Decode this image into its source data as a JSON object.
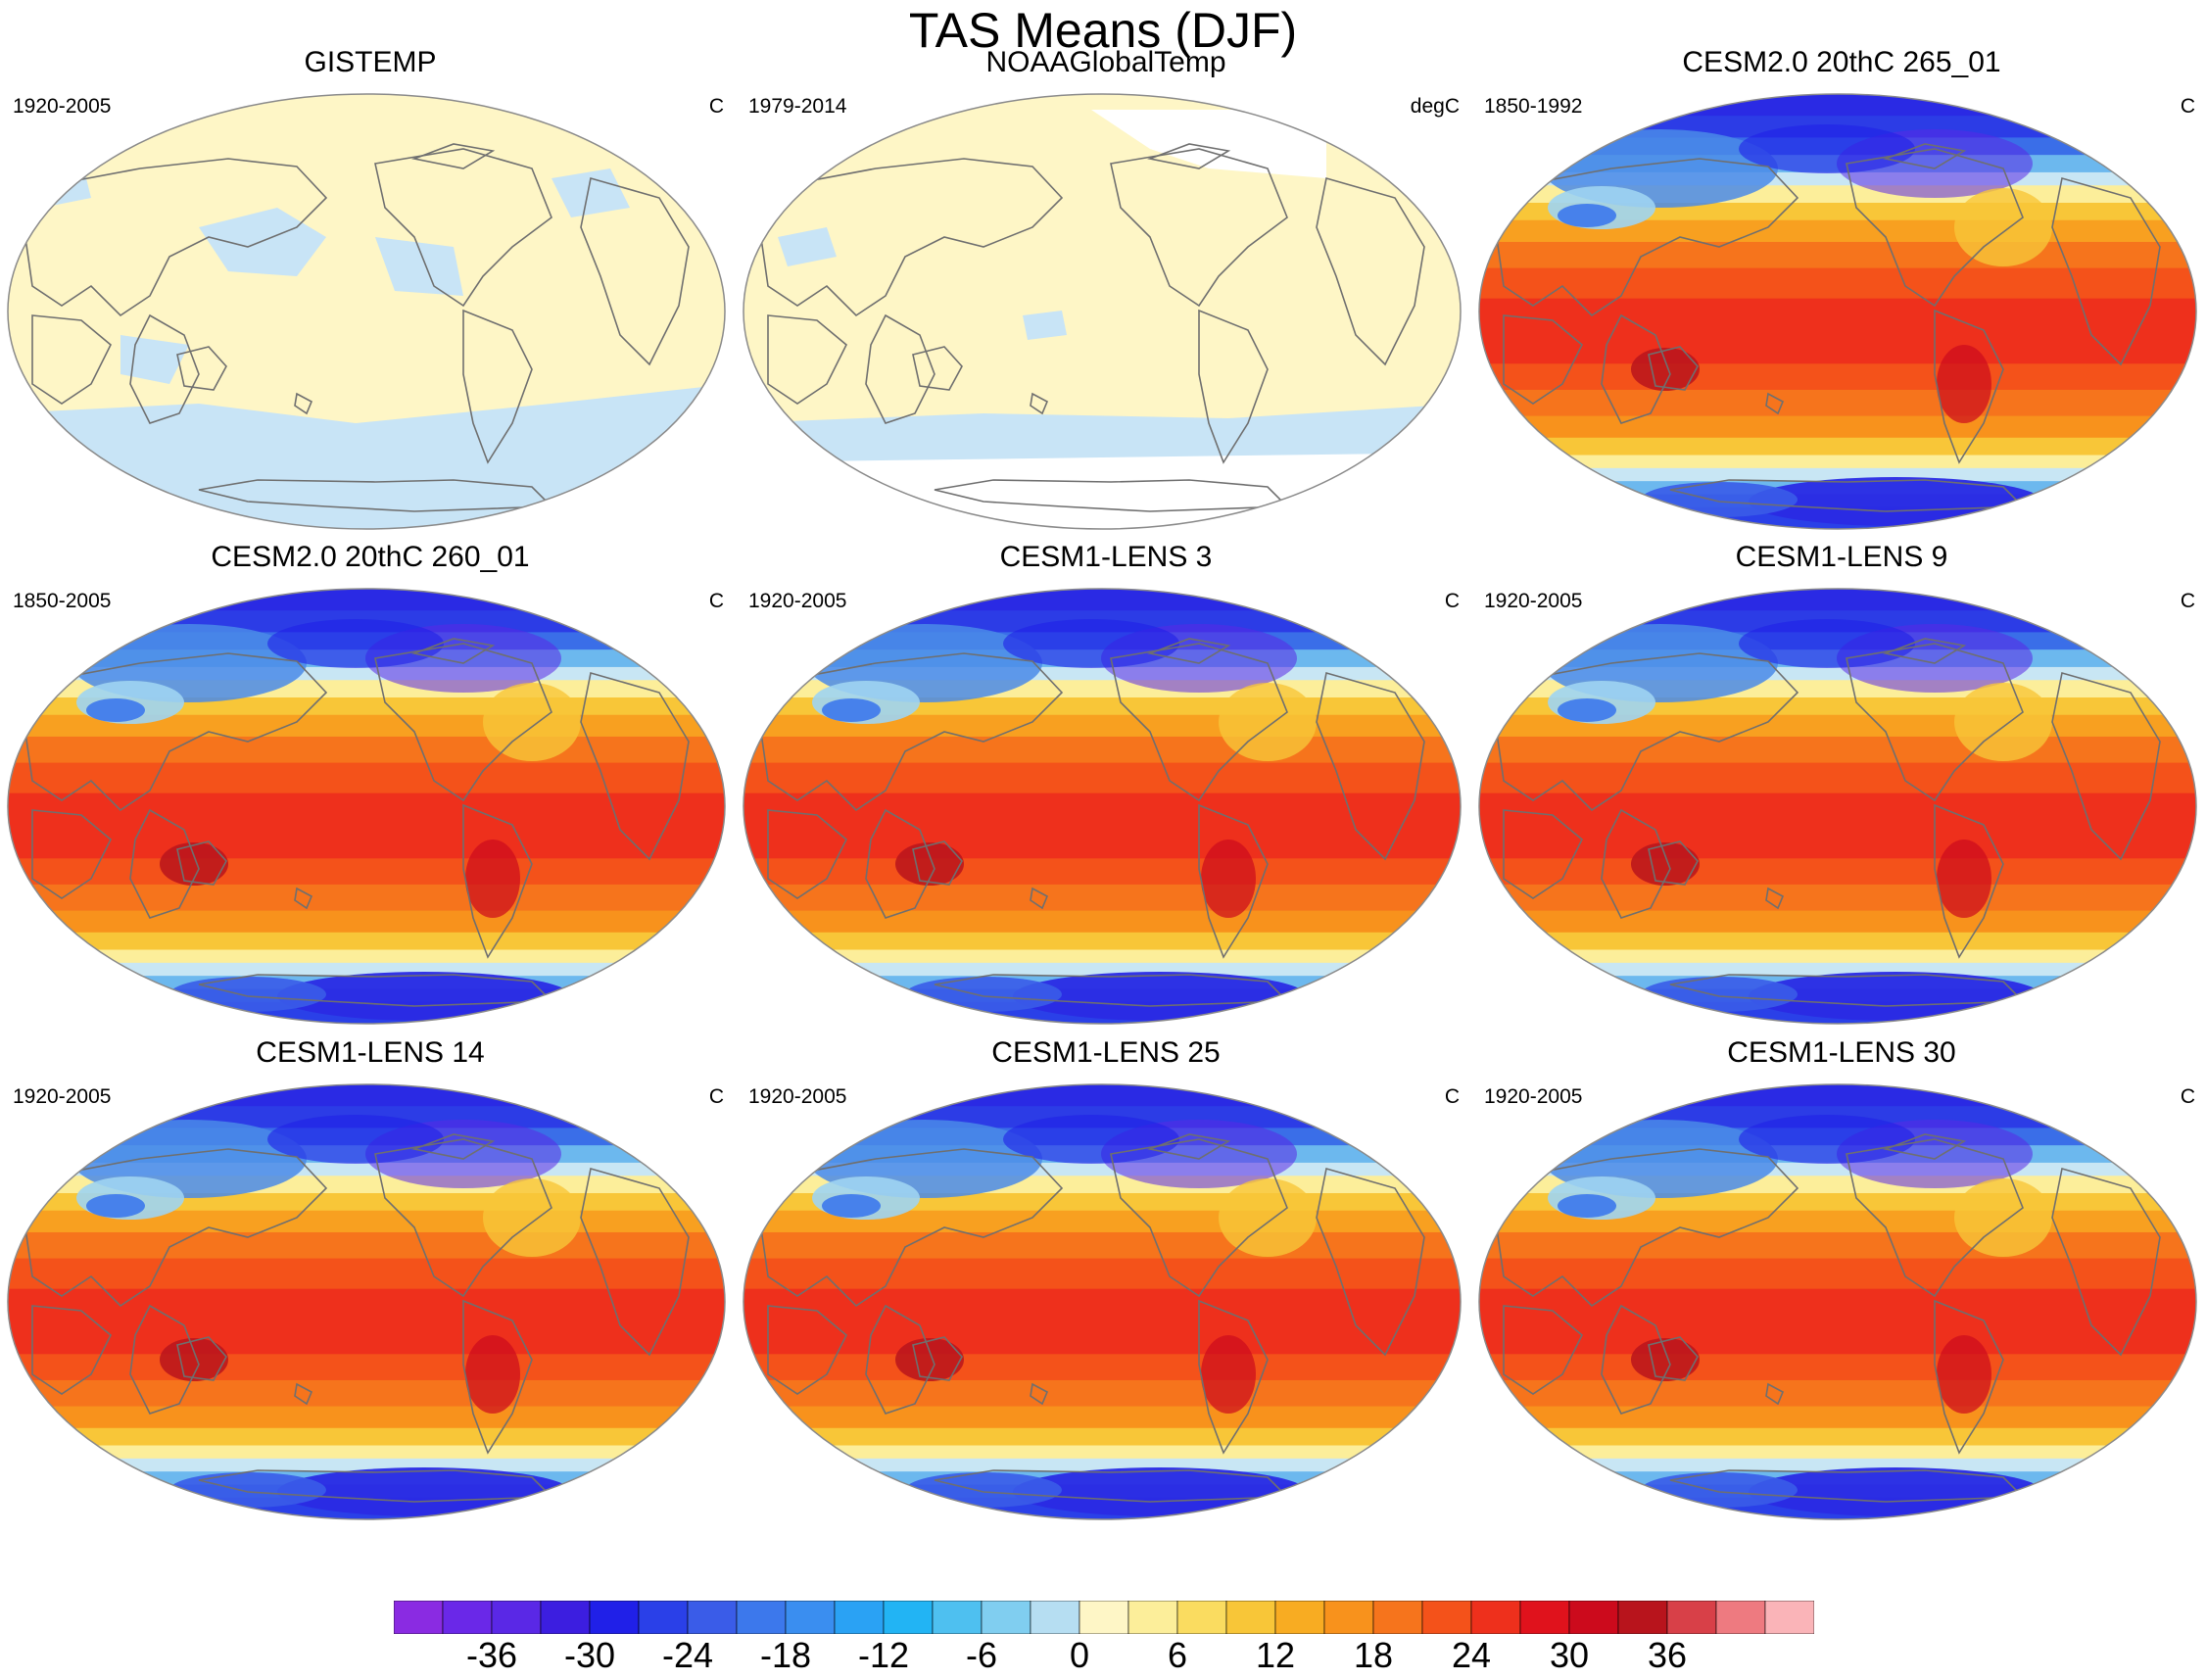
{
  "title": "TAS Means (DJF)",
  "panels": [
    {
      "title": "GISTEMP",
      "period": "1920-2005",
      "units": "C",
      "style": "anomaly"
    },
    {
      "title": "NOAAGlobalTemp",
      "period": "1979-2014",
      "units": "degC",
      "style": "anomaly_obs"
    },
    {
      "title": "CESM2.0 20thC 265_01",
      "period": "1850-1992",
      "units": "C",
      "style": "model"
    },
    {
      "title": "CESM2.0 20thC 260_01",
      "period": "1850-2005",
      "units": "C",
      "style": "model"
    },
    {
      "title": "CESM1-LENS 3",
      "period": "1920-2005",
      "units": "C",
      "style": "model"
    },
    {
      "title": "CESM1-LENS 9",
      "period": "1920-2005",
      "units": "C",
      "style": "model"
    },
    {
      "title": "CESM1-LENS 14",
      "period": "1920-2005",
      "units": "C",
      "style": "model"
    },
    {
      "title": "CESM1-LENS 25",
      "period": "1920-2005",
      "units": "C",
      "style": "model"
    },
    {
      "title": "CESM1-LENS 30",
      "period": "1920-2005",
      "units": "C",
      "style": "model"
    }
  ],
  "colorbar": {
    "levels": [
      -39,
      -36,
      -33,
      -30,
      -27,
      -24,
      -21,
      -18,
      -15,
      -12,
      -9,
      -6,
      -3,
      0,
      3,
      6,
      9,
      12,
      15,
      18,
      21,
      24,
      27,
      30,
      33,
      36,
      39
    ],
    "tick_labels": [
      "-36",
      "-30",
      "-24",
      "-18",
      "-12",
      "-6",
      "0",
      "6",
      "12",
      "18",
      "24",
      "30",
      "36"
    ],
    "tick_values": [
      -36,
      -30,
      -24,
      -18,
      -12,
      -6,
      0,
      6,
      12,
      18,
      24,
      30,
      36
    ],
    "colors": [
      "#8a2be2",
      "#6a28e8",
      "#5a28e6",
      "#3c1ee0",
      "#2020e8",
      "#2a40e8",
      "#3a5ce8",
      "#3c78ec",
      "#3a8ef0",
      "#2aa2f4",
      "#22b4f4",
      "#4ec0f0",
      "#80cef0",
      "#b6def2",
      "#fef6c6",
      "#fcee9a",
      "#fadc60",
      "#f8c638",
      "#f8ac22",
      "#f8921c",
      "#f6741c",
      "#f4521a",
      "#ee301c",
      "#e0121c",
      "#cc0a1c",
      "#b8141c",
      "#d84048",
      "#ee7a80",
      "#fab4b8"
    ]
  }
}
